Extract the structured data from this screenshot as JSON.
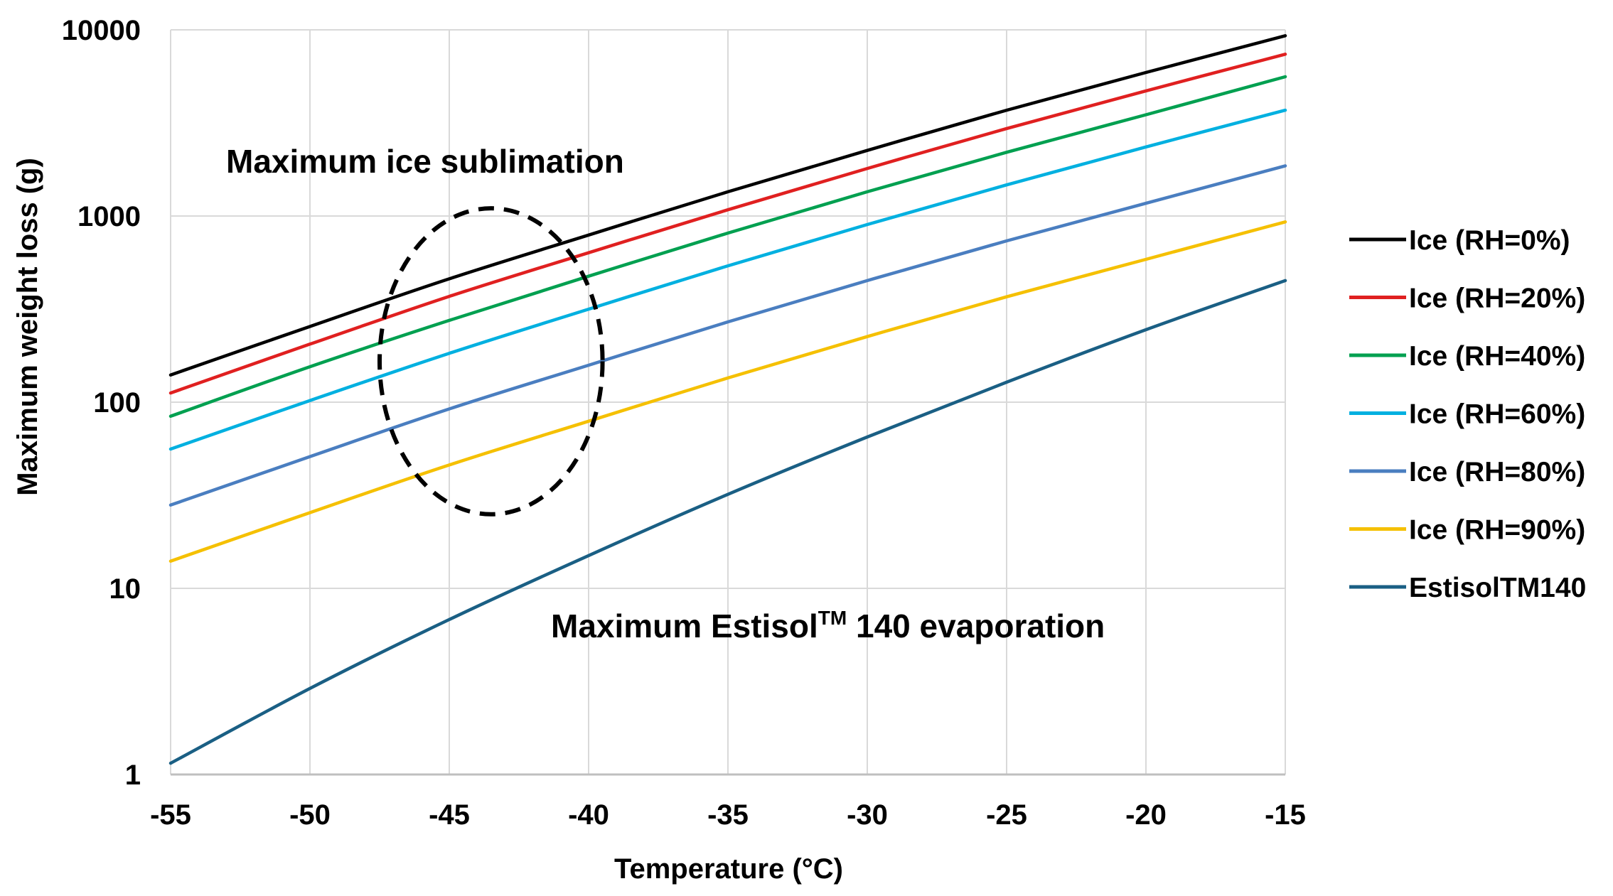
{
  "chart_data": {
    "type": "line",
    "title": "",
    "xlabel": "Temperature (°C)",
    "ylabel": "Maximum weight loss (g)",
    "xlim": [
      -55,
      -15
    ],
    "ylim": [
      1,
      10000
    ],
    "yscale": "log",
    "grid": true,
    "x_ticks": [
      -55,
      -50,
      -45,
      -40,
      -35,
      -30,
      -25,
      -20,
      -15
    ],
    "x_tick_labels": [
      "-55",
      "-50",
      "-45",
      "-40",
      "-35",
      "-30",
      "-25",
      "-20",
      "-15"
    ],
    "y_ticks": [
      1,
      10,
      100,
      1000,
      10000
    ],
    "y_tick_labels": [
      "1",
      "10",
      "100",
      "1000",
      "10000"
    ],
    "legend_position": "right",
    "x": [
      -55,
      -50,
      -45,
      -40,
      -35,
      -30,
      -25,
      -20,
      -15
    ],
    "series": [
      {
        "name": "Ice (RH=0%)",
        "color": "#000000",
        "values": [
          140,
          255,
          460,
          790,
          1350,
          2250,
          3700,
          5900,
          9300
        ]
      },
      {
        "name": "Ice (RH=20%)",
        "color": "#e02020",
        "values": [
          112,
          205,
          370,
          635,
          1080,
          1800,
          2950,
          4700,
          7400
        ]
      },
      {
        "name": "Ice (RH=40%)",
        "color": "#00a050",
        "values": [
          84,
          155,
          275,
          475,
          810,
          1350,
          2200,
          3500,
          5600
        ]
      },
      {
        "name": "Ice (RH=60%)",
        "color": "#00b0e0",
        "values": [
          56,
          102,
          183,
          316,
          540,
          900,
          1470,
          2350,
          3700
        ]
      },
      {
        "name": "Ice (RH=80%)",
        "color": "#4a7ec0",
        "values": [
          28,
          51,
          92,
          158,
          270,
          450,
          735,
          1170,
          1860
        ]
      },
      {
        "name": "Ice (RH=90%)",
        "color": "#f5c000",
        "values": [
          14,
          25.5,
          46,
          79,
          135,
          225,
          368,
          585,
          930
        ]
      },
      {
        "name": "EstisolTM140",
        "color": "#1a5f84",
        "values": [
          1.15,
          2.9,
          6.8,
          15,
          32,
          65,
          128,
          245,
          450
        ]
      }
    ],
    "annotations": {
      "ice_sublimation": "Maximum ice sublimation",
      "estisol_prefix": "Maximum Estisol",
      "estisol_superscript": "TM",
      "estisol_suffix": " 140 evaporation"
    },
    "highlight_ellipse": {
      "center_x": -43.5,
      "center_y": 160,
      "x_radius": 4,
      "y_low": 25,
      "y_high": 1100,
      "style": "dashed"
    }
  },
  "colors": {
    "grid": "#d9d9d9",
    "axis": "#bfbfbf",
    "background": "#ffffff"
  }
}
